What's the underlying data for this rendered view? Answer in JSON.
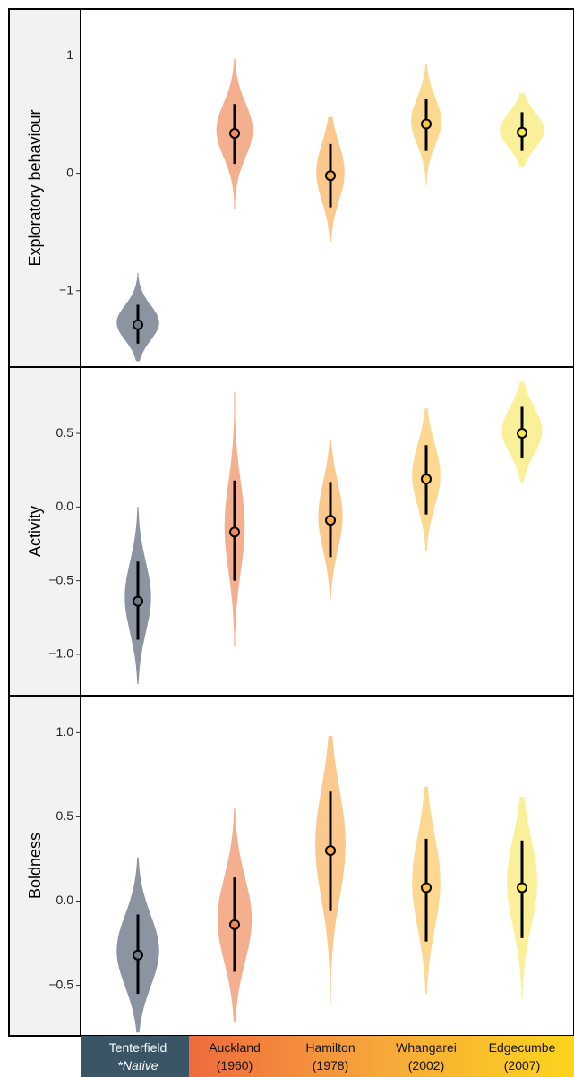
{
  "chart_data": [
    {
      "type": "violin",
      "ylabel": "Exploratory behaviour",
      "ylim": [
        -1.65,
        1.4
      ],
      "yticks": [
        {
          "v": 1,
          "label": "1"
        },
        {
          "v": 0,
          "label": "0"
        },
        {
          "v": -1,
          "label": "−1"
        }
      ],
      "categories": [
        "Tenterfield",
        "Auckland",
        "Hamilton",
        "Whangarei",
        "Edgecumbe"
      ],
      "points": [
        {
          "mean": -1.29,
          "low": -1.45,
          "high": -1.12,
          "vmin": -1.6,
          "vmax": -0.85,
          "width": 0.42
        },
        {
          "mean": 0.34,
          "low": 0.08,
          "high": 0.59,
          "vmin": -0.3,
          "vmax": 0.98,
          "width": 0.36
        },
        {
          "mean": -0.02,
          "low": -0.29,
          "high": 0.25,
          "vmin": -0.58,
          "vmax": 0.48,
          "width": 0.28
        },
        {
          "mean": 0.42,
          "low": 0.19,
          "high": 0.63,
          "vmin": -0.1,
          "vmax": 0.93,
          "width": 0.3
        },
        {
          "mean": 0.35,
          "low": 0.19,
          "high": 0.52,
          "vmin": 0.06,
          "vmax": 0.68,
          "width": 0.44
        }
      ]
    },
    {
      "type": "violin",
      "ylabel": "Activity",
      "ylim": [
        -1.28,
        0.95
      ],
      "yticks": [
        {
          "v": 0.5,
          "label": "0.5"
        },
        {
          "v": 0.0,
          "label": "0.0"
        },
        {
          "v": -0.5,
          "label": "−0.5"
        },
        {
          "v": -1.0,
          "label": "−1.0"
        }
      ],
      "categories": [
        "Tenterfield",
        "Auckland",
        "Hamilton",
        "Whangarei",
        "Edgecumbe"
      ],
      "points": [
        {
          "mean": -0.64,
          "low": -0.9,
          "high": -0.37,
          "vmin": -1.2,
          "vmax": 0.0,
          "width": 0.26
        },
        {
          "mean": -0.17,
          "low": -0.5,
          "high": 0.18,
          "vmin": -0.95,
          "vmax": 0.78,
          "width": 0.2
        },
        {
          "mean": -0.09,
          "low": -0.34,
          "high": 0.17,
          "vmin": -0.62,
          "vmax": 0.45,
          "width": 0.24
        },
        {
          "mean": 0.19,
          "low": -0.05,
          "high": 0.42,
          "vmin": -0.3,
          "vmax": 0.67,
          "width": 0.28
        },
        {
          "mean": 0.5,
          "low": 0.33,
          "high": 0.68,
          "vmin": 0.17,
          "vmax": 0.85,
          "width": 0.4
        }
      ]
    },
    {
      "type": "violin",
      "ylabel": "Boldness",
      "ylim": [
        -0.8,
        1.22
      ],
      "yticks": [
        {
          "v": 1.0,
          "label": "1.0"
        },
        {
          "v": 0.5,
          "label": "0.5"
        },
        {
          "v": 0.0,
          "label": "0.0"
        },
        {
          "v": -0.5,
          "label": "−0.5"
        }
      ],
      "categories": [
        "Tenterfield",
        "Auckland",
        "Hamilton",
        "Whangarei",
        "Edgecumbe"
      ],
      "points": [
        {
          "mean": -0.32,
          "low": -0.55,
          "high": -0.08,
          "vmin": -0.78,
          "vmax": 0.26,
          "width": 0.42
        },
        {
          "mean": -0.14,
          "low": -0.42,
          "high": 0.14,
          "vmin": -0.72,
          "vmax": 0.55,
          "width": 0.34
        },
        {
          "mean": 0.3,
          "low": -0.06,
          "high": 0.65,
          "vmin": -0.6,
          "vmax": 0.98,
          "width": 0.3
        },
        {
          "mean": 0.08,
          "low": -0.24,
          "high": 0.37,
          "vmin": -0.55,
          "vmax": 0.68,
          "width": 0.28
        },
        {
          "mean": 0.08,
          "low": -0.22,
          "high": 0.36,
          "vmin": -0.58,
          "vmax": 0.62,
          "width": 0.3
        }
      ]
    }
  ],
  "colors": {
    "violins": [
      "#8c94a2",
      "#f4b08e",
      "#fbc98e",
      "#fdd890",
      "#fbf09a"
    ],
    "points": [
      "#6e7a86",
      "#f08a5c",
      "#f9a84a",
      "#fbc43c",
      "#f7e64c"
    ],
    "strip": [
      "#3a5566",
      "#ef6a3e",
      "#f49a3a",
      "#fbbf2a",
      "#fdd41e"
    ],
    "panel_bg": "#f2f2f2"
  },
  "sites": [
    {
      "name": "Tenterfield",
      "sub": "*Native"
    },
    {
      "name": "Auckland",
      "sub": "(1960)"
    },
    {
      "name": "Hamilton",
      "sub": "(1978)"
    },
    {
      "name": "Whangarei",
      "sub": "(2002)"
    },
    {
      "name": "Edgecumbe",
      "sub": "(2007)"
    }
  ]
}
